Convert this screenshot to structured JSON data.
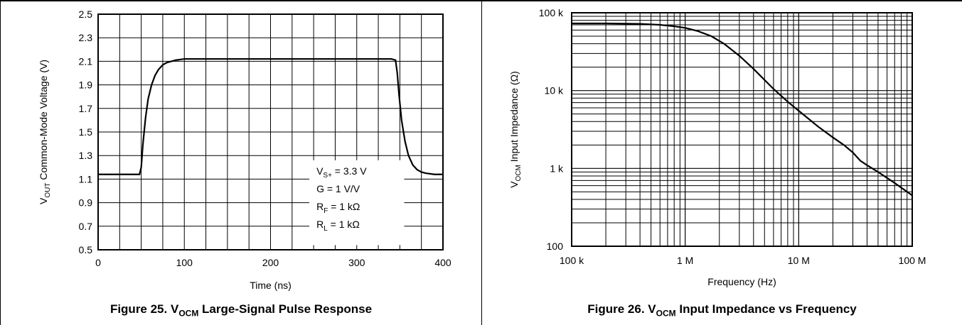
{
  "figures": [
    {
      "caption": {
        "prefix": "Figure 25. V",
        "sub": "OCM",
        "suffix": " Large-Signal Pulse Response"
      },
      "ylabel": {
        "pre": "V",
        "sub": "OUT",
        "post": " Common-Mode Voltage (V)"
      },
      "xlabel": "Time (ns)",
      "annotations": [
        {
          "pre": "V",
          "sub": "S+",
          "post": " = 3.3 V"
        },
        {
          "pre": "G = 1 V/V",
          "sub": "",
          "post": ""
        },
        {
          "pre": "R",
          "sub": "F",
          "post": " = 1 kΩ"
        },
        {
          "pre": "R",
          "sub": "L",
          "post": " = 1 kΩ"
        }
      ]
    },
    {
      "caption": {
        "prefix": "Figure 26. V",
        "sub": "OCM",
        "suffix": " Input Impedance vs Frequency"
      },
      "ylabel": {
        "pre": "V",
        "sub": "OCM",
        "post": " Input Impedance (Ω)"
      },
      "xlabel": "Frequency (Hz)"
    }
  ],
  "chart_data": [
    {
      "type": "line",
      "title": "Figure 25. VOCM Large-Signal Pulse Response",
      "xlabel": "Time (ns)",
      "ylabel": "VOUT Common-Mode Voltage (V)",
      "xlim": [
        0,
        400
      ],
      "ylim": [
        0.5,
        2.5
      ],
      "xticks": [
        "0",
        "100",
        "200",
        "300",
        "400"
      ],
      "yticks": [
        "0.5",
        "0.7",
        "0.9",
        "1.1",
        "1.3",
        "1.5",
        "1.7",
        "1.9",
        "2.1",
        "2.3",
        "2.5"
      ],
      "grid": true,
      "series": [
        {
          "color": "#000000",
          "x": [
            0,
            20,
            40,
            48,
            50,
            52,
            55,
            58,
            62,
            66,
            70,
            75,
            80,
            85,
            90,
            95,
            100,
            120,
            150,
            200,
            250,
            300,
            340,
            345,
            347,
            349,
            352,
            356,
            360,
            365,
            370,
            375,
            380,
            390,
            400
          ],
          "y": [
            1.14,
            1.14,
            1.14,
            1.14,
            1.2,
            1.4,
            1.62,
            1.78,
            1.9,
            1.98,
            2.03,
            2.07,
            2.09,
            2.1,
            2.11,
            2.115,
            2.12,
            2.12,
            2.12,
            2.12,
            2.12,
            2.12,
            2.12,
            2.11,
            2.0,
            1.82,
            1.6,
            1.42,
            1.3,
            1.22,
            1.18,
            1.16,
            1.15,
            1.14,
            1.14
          ]
        }
      ]
    },
    {
      "type": "line",
      "title": "Figure 26. VOCM Input Impedance vs Frequency",
      "xlabel": "Frequency (Hz)",
      "ylabel": "VOCM Input Impedance (Ω)",
      "xscale": "log",
      "yscale": "log",
      "xlim": [
        100000,
        100000000
      ],
      "ylim": [
        100,
        100000
      ],
      "xticks": [
        "100 k",
        "1 M",
        "10 M",
        "100 M"
      ],
      "yticks": [
        "100",
        "1 k",
        "10 k",
        "100 k"
      ],
      "grid": true,
      "series": [
        {
          "color": "#000000",
          "x": [
            100000,
            200000,
            400000,
            600000,
            800000,
            1000000,
            1300000,
            1700000,
            2200000,
            3000000,
            4000000,
            6000000,
            8000000,
            10000000,
            15000000,
            20000000,
            25000000,
            30000000,
            35000000,
            40000000,
            50000000,
            70000000,
            100000000
          ],
          "y": [
            73000,
            73000,
            72000,
            70000,
            67000,
            64000,
            58000,
            50000,
            40000,
            28000,
            19000,
            10500,
            7200,
            5500,
            3400,
            2500,
            2000,
            1600,
            1250,
            1100,
            900,
            650,
            450
          ]
        }
      ]
    }
  ]
}
